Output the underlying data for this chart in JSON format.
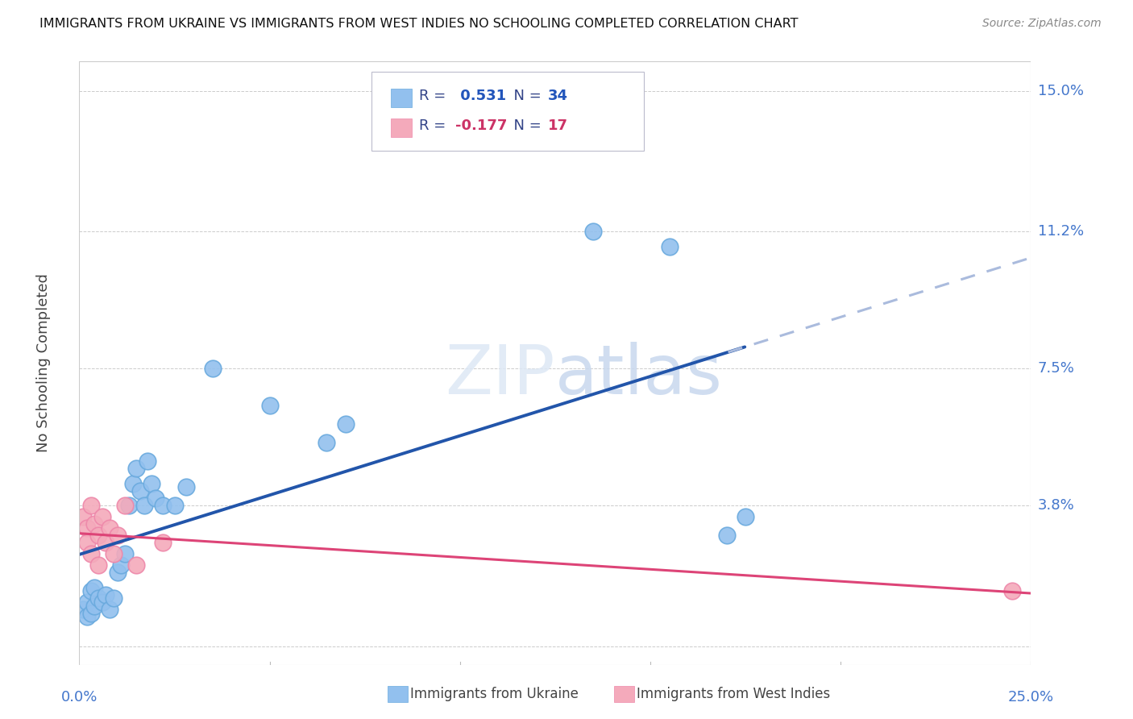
{
  "title": "IMMIGRANTS FROM UKRAINE VS IMMIGRANTS FROM WEST INDIES NO SCHOOLING COMPLETED CORRELATION CHART",
  "source": "Source: ZipAtlas.com",
  "ylabel": "No Schooling Completed",
  "yticks": [
    0.0,
    0.038,
    0.075,
    0.112,
    0.15
  ],
  "ytick_labels": [
    "",
    "3.8%",
    "7.5%",
    "11.2%",
    "15.0%"
  ],
  "xticks": [
    0.0,
    0.05,
    0.1,
    0.15,
    0.2,
    0.25
  ],
  "xlim": [
    0.0,
    0.25
  ],
  "ylim": [
    -0.005,
    0.158
  ],
  "ukraine_color": "#92C0EE",
  "ukraine_edge_color": "#6AAADE",
  "ukraine_line_color": "#2255AA",
  "ukraine_dash_color": "#AABBDD",
  "westindies_color": "#F4AABB",
  "westindies_edge_color": "#EE88AA",
  "westindies_line_color": "#DD4477",
  "ukraine_x": [
    0.001,
    0.002,
    0.002,
    0.003,
    0.003,
    0.004,
    0.004,
    0.005,
    0.006,
    0.007,
    0.008,
    0.009,
    0.01,
    0.011,
    0.012,
    0.013,
    0.014,
    0.015,
    0.016,
    0.017,
    0.018,
    0.019,
    0.02,
    0.022,
    0.025,
    0.028,
    0.035,
    0.05,
    0.065,
    0.07,
    0.135,
    0.155,
    0.17,
    0.175
  ],
  "ukraine_y": [
    0.01,
    0.012,
    0.008,
    0.015,
    0.009,
    0.016,
    0.011,
    0.013,
    0.012,
    0.014,
    0.01,
    0.013,
    0.02,
    0.022,
    0.025,
    0.038,
    0.044,
    0.048,
    0.042,
    0.038,
    0.05,
    0.044,
    0.04,
    0.038,
    0.038,
    0.043,
    0.075,
    0.065,
    0.055,
    0.06,
    0.112,
    0.108,
    0.03,
    0.035
  ],
  "westindies_x": [
    0.001,
    0.002,
    0.002,
    0.003,
    0.003,
    0.004,
    0.005,
    0.005,
    0.006,
    0.007,
    0.008,
    0.009,
    0.01,
    0.012,
    0.015,
    0.022,
    0.245
  ],
  "westindies_y": [
    0.035,
    0.032,
    0.028,
    0.038,
    0.025,
    0.033,
    0.03,
    0.022,
    0.035,
    0.028,
    0.032,
    0.025,
    0.03,
    0.038,
    0.022,
    0.028,
    0.015
  ],
  "watermark_zip": "ZIP",
  "watermark_atlas": "atlas",
  "background_color": "#FFFFFF",
  "grid_color": "#CCCCCC",
  "legend_R1": "R = ",
  "legend_V1": " 0.531",
  "legend_N1": "  N = ",
  "legend_NV1": "34",
  "legend_R2": "R = ",
  "legend_V2": "-0.177",
  "legend_N2": "  N = ",
  "legend_NV2": "17"
}
